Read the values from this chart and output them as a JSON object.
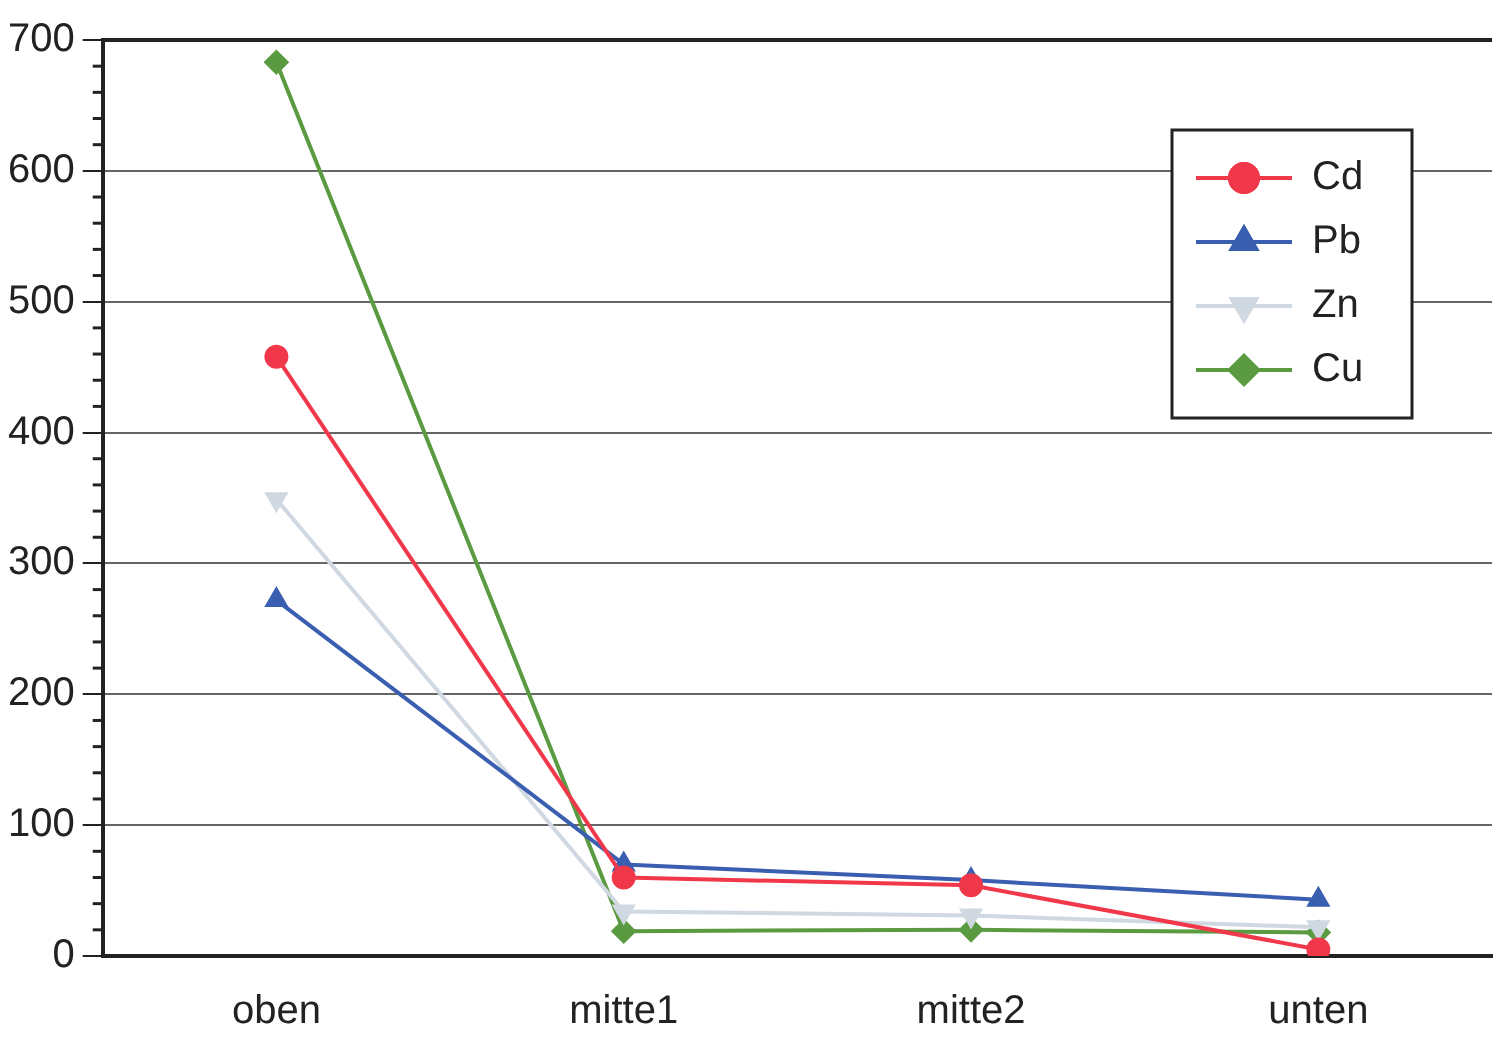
{
  "chart_data": {
    "type": "line",
    "categories": [
      "oben",
      "mitte1",
      "mitte2",
      "unten"
    ],
    "ylim": [
      0,
      700
    ],
    "yticks": [
      0,
      100,
      200,
      300,
      400,
      500,
      600,
      700
    ],
    "grid": "y",
    "legend": "top right",
    "series": [
      {
        "name": "Cd",
        "color": "#f0384a",
        "marker": "circle",
        "values": [
          458,
          60,
          54,
          5
        ]
      },
      {
        "name": "Pb",
        "color": "#3a5fb0",
        "marker": "triangle",
        "values": [
          272,
          70,
          58,
          43
        ]
      },
      {
        "name": "Zn",
        "color": "#d0d8e2",
        "marker": "triangle-down",
        "values": [
          349,
          34,
          31,
          22
        ]
      },
      {
        "name": "Cu",
        "color": "#5a9a40",
        "marker": "diamond",
        "values": [
          683,
          19,
          20,
          18
        ]
      }
    ]
  }
}
